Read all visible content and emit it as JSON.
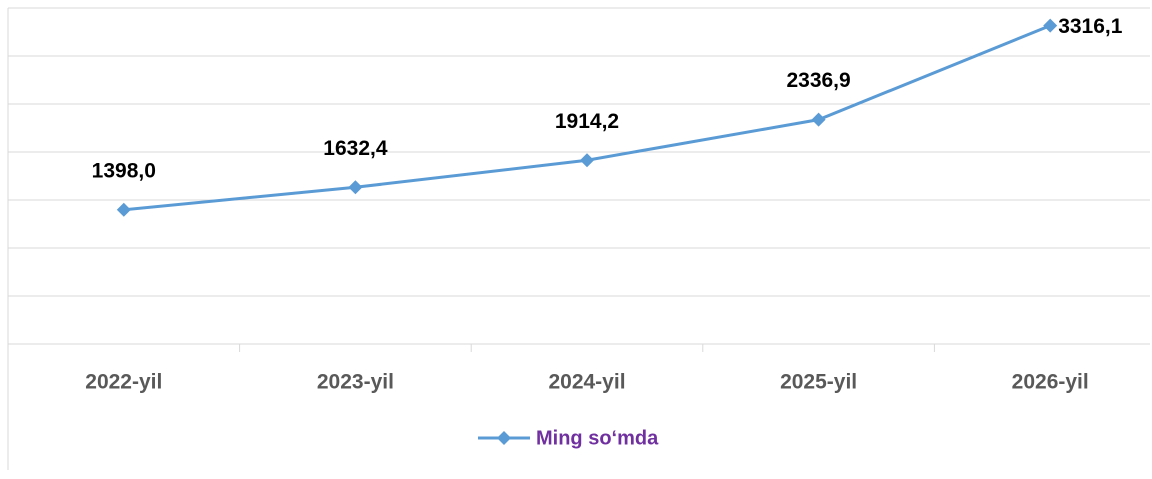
{
  "chart_data": {
    "type": "line",
    "categories": [
      "2022-yil",
      "2023-yil",
      "2024-yil",
      "2025-yil",
      "2026-yil"
    ],
    "series": [
      {
        "name": "Ming so‘mda",
        "color": "#5b9bd5",
        "values": [
          1398.0,
          1632.4,
          1914.2,
          2336.9,
          3316.1
        ],
        "value_labels": [
          "1398,0",
          "1632,4",
          "1914,2",
          "2336,9",
          "3316,1"
        ]
      }
    ],
    "ylim": [
      0,
      3500
    ],
    "yticks": [
      0,
      500,
      1000,
      1500,
      2000,
      2500,
      3000,
      3500
    ],
    "grid": true,
    "legend": "bottom"
  }
}
